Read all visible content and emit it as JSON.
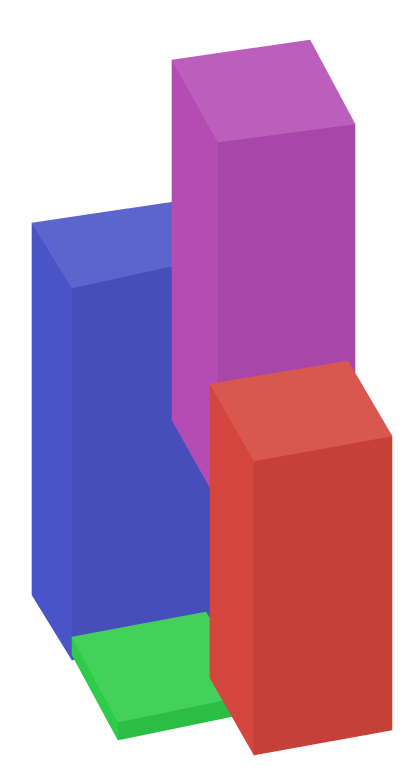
{
  "chart_data": {
    "type": "bar",
    "variant": "3d-bar-grid",
    "title": "",
    "xlabel": "",
    "ylabel": "",
    "axes_visible": false,
    "grid": false,
    "legend": "none",
    "bars": [
      {
        "row": "back",
        "col": "left",
        "value": 6.2,
        "color": "#4a54c8"
      },
      {
        "row": "back",
        "col": "right",
        "value": 6.0,
        "color": "#b44cb4"
      },
      {
        "row": "front",
        "col": "left",
        "value": 0.3,
        "color": "#2ecc4a"
      },
      {
        "row": "front",
        "col": "right",
        "value": 4.9,
        "color": "#d4453d"
      }
    ]
  }
}
